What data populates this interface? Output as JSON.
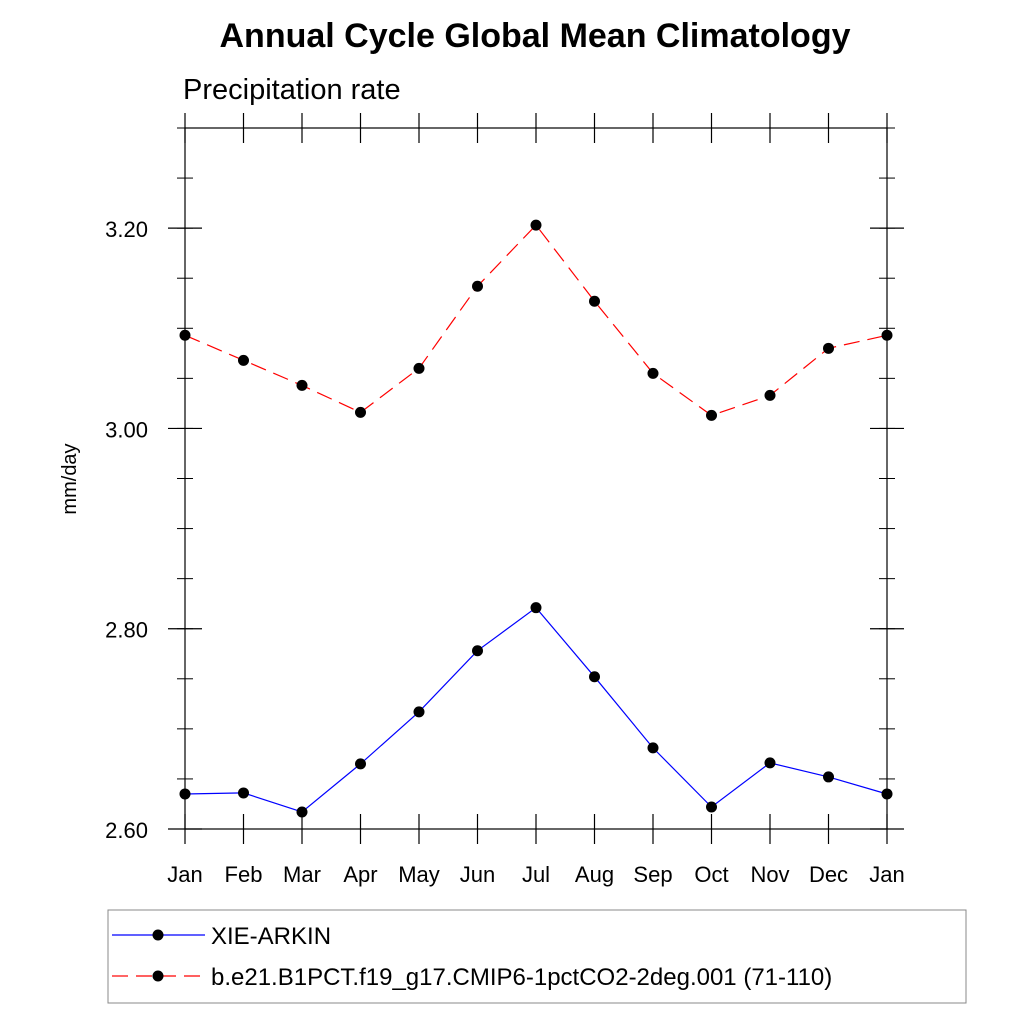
{
  "chart_data": {
    "type": "line",
    "title": "Annual Cycle Global Mean Climatology",
    "subtitle": "Precipitation rate",
    "xlabel": "",
    "ylabel": "mm/day",
    "categories": [
      "Jan",
      "Feb",
      "Mar",
      "Apr",
      "May",
      "Jun",
      "Jul",
      "Aug",
      "Sep",
      "Oct",
      "Nov",
      "Dec",
      "Jan"
    ],
    "ylim": [
      2.6,
      3.3
    ],
    "yticks": [
      2.6,
      2.8,
      3.0,
      3.2
    ],
    "ytick_labels": [
      "2.60",
      "2.80",
      "3.00",
      "3.20"
    ],
    "legend_position": "bottom",
    "series": [
      {
        "name": "XIE-ARKIN",
        "color": "#0000ff",
        "dash": "solid",
        "marker": "circle",
        "values": [
          2.635,
          2.636,
          2.617,
          2.665,
          2.717,
          2.778,
          2.821,
          2.752,
          2.681,
          2.622,
          2.666,
          2.652,
          2.635
        ]
      },
      {
        "name": "b.e21.B1PCT.f19_g17.CMIP6-1pctCO2-2deg.001 (71-110)",
        "color": "#ff0000",
        "dash": "dashed",
        "marker": "circle",
        "values": [
          3.093,
          3.068,
          3.043,
          3.016,
          3.06,
          3.142,
          3.203,
          3.127,
          3.055,
          3.013,
          3.033,
          3.08,
          3.093
        ]
      }
    ]
  }
}
